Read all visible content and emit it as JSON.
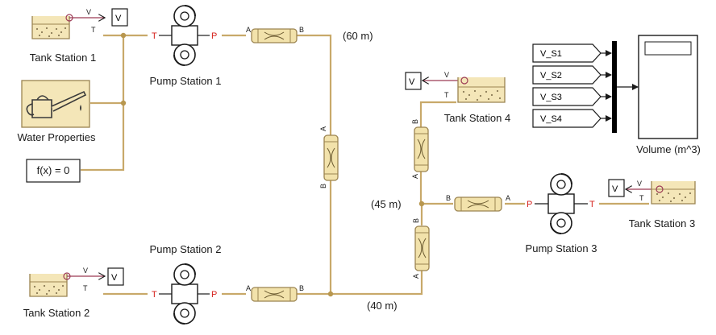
{
  "labels": {
    "tank1": "Tank Station 1",
    "tank2": "Tank Station 2",
    "tank3": "Tank Station 3",
    "tank4": "Tank Station 4",
    "pump1": "Pump Station 1",
    "pump2": "Pump Station 2",
    "pump3": "Pump Station 3",
    "water": "Water Properties",
    "solver": "f(x) = 0",
    "scope": "Volume (m^3)",
    "elev_60": "(60 m)",
    "elev_45": "(45 m)",
    "elev_40": "(40 m)"
  },
  "ports": {
    "a": "A",
    "b": "B",
    "t": "T",
    "p": "P",
    "v": "V"
  },
  "signals": [
    "V_S1",
    "V_S2",
    "V_S3",
    "V_S4"
  ],
  "colors": {
    "pipe": "#c8a96a",
    "port_red": "#d6231e",
    "signal": "#1a1a1a",
    "tank_fill": "#f4e6b8",
    "water_dots": "#8a7a55",
    "sensor": "#9c3a55"
  }
}
